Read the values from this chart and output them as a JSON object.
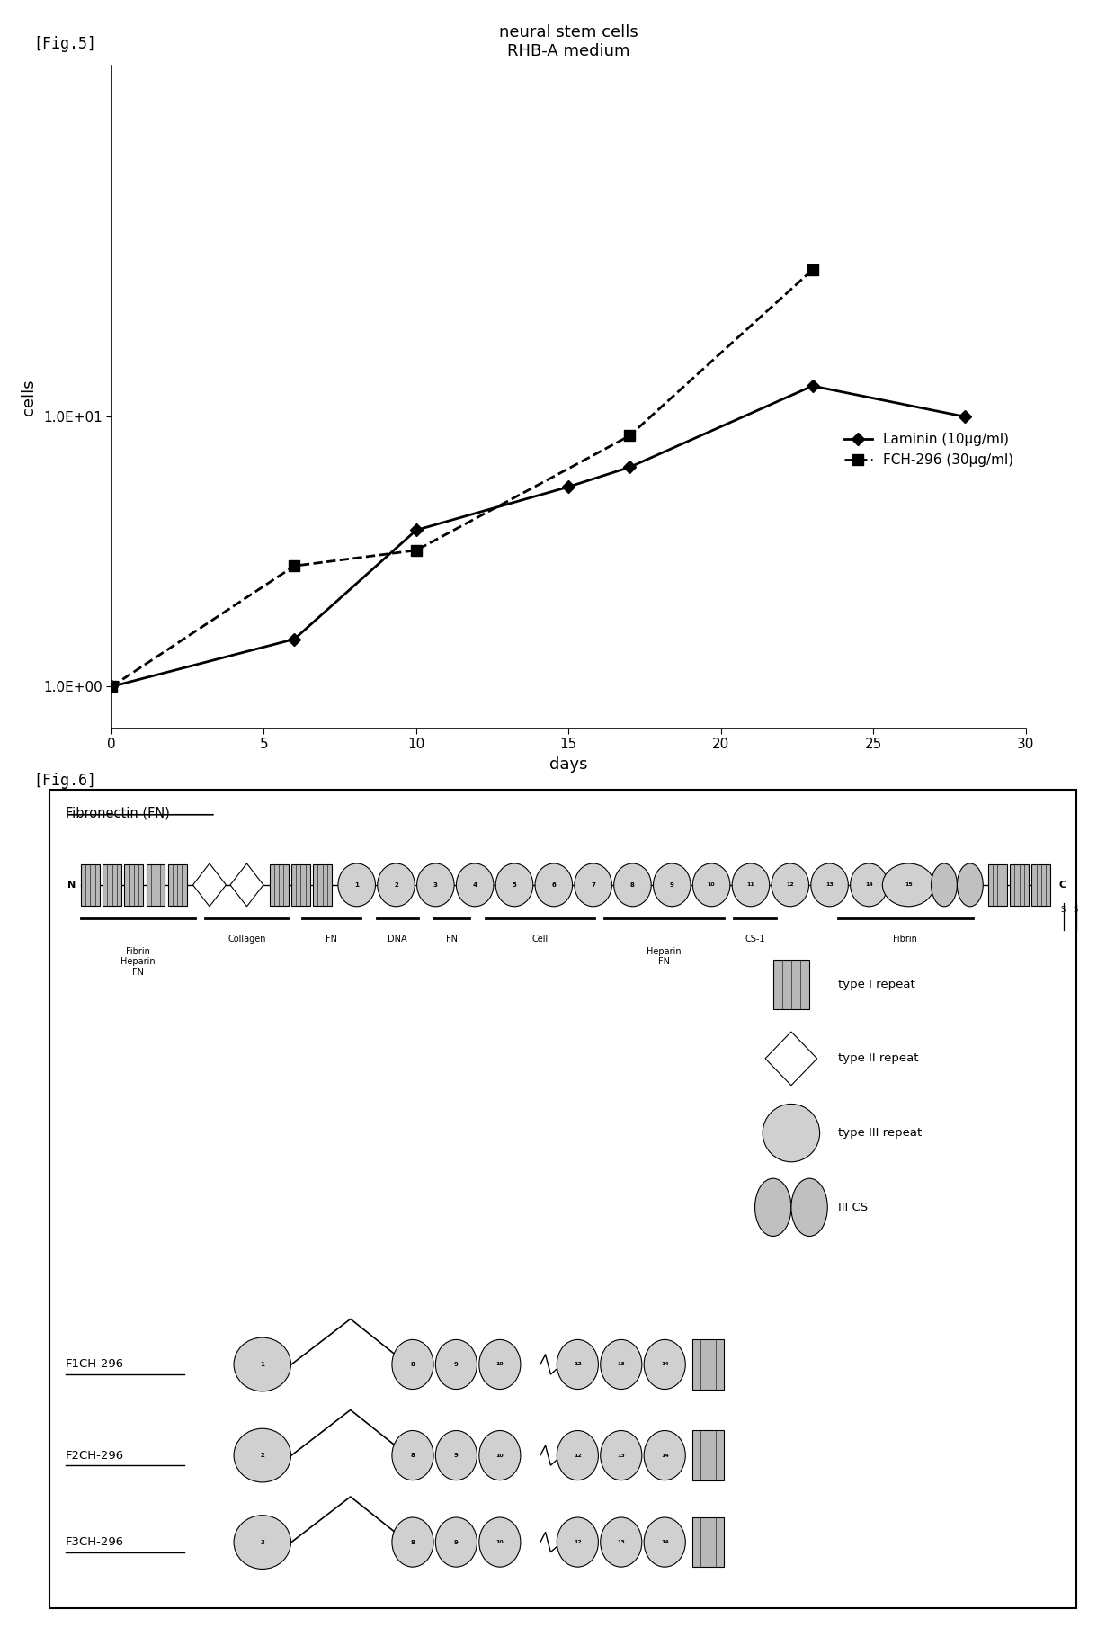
{
  "fig5": {
    "title_line1": "neural stem cells",
    "title_line2": "RHB-A medium",
    "xlabel": "days",
    "ylabel": "cells",
    "xticks": [
      0,
      5,
      10,
      15,
      20,
      25,
      30
    ],
    "laminin_x": [
      0,
      6,
      10,
      15,
      17,
      23,
      28
    ],
    "laminin_y": [
      1.0,
      1.5,
      3.8,
      5.5,
      6.5,
      13.0,
      10.0
    ],
    "fch296_x": [
      0,
      6,
      10,
      17,
      23
    ],
    "fch296_y": [
      1.0,
      2.8,
      3.2,
      8.5,
      35.0
    ],
    "legend_laminin": "Laminin (10μg/ml)",
    "legend_fch": "FCH-296 (30μg/ml)"
  },
  "fig6": {
    "title": "Fibronectin (FN)",
    "legend_type1": "type I repeat",
    "legend_type2": "type II repeat",
    "legend_type3": "type III repeat",
    "legend_iiics": "III CS",
    "domain_labels": [
      "Fibrin\nHeparin\nFN",
      "Collagen",
      "FN",
      "DNA",
      "FN",
      "Cell",
      "Heparin\nFN",
      "CS-1",
      "Fibrin"
    ],
    "fragments": [
      "F1CH-296",
      "F2CH-296",
      "F3CH-296"
    ],
    "fragment_nums": [
      "1",
      "2",
      "3"
    ]
  }
}
